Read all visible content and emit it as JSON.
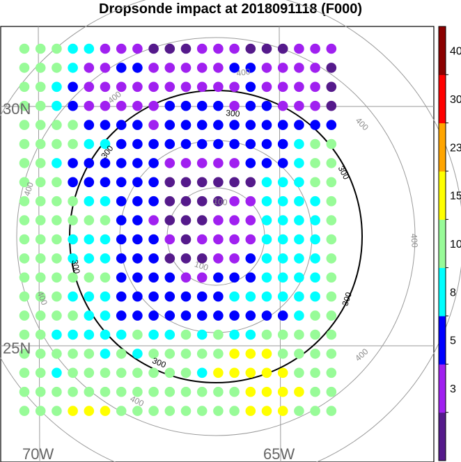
{
  "title": "Dropsonde impact at 2018091118 (F000)",
  "map": {
    "lat_labels": [
      "30N",
      "25N"
    ],
    "lon_labels": [
      "70W",
      "65W"
    ],
    "contour_labels": {
      "c100": "100",
      "c300": "300",
      "c400": "400"
    },
    "grid": "on"
  },
  "colorbar": {
    "tick_labels": [
      "3",
      "5",
      "8",
      "10",
      "15",
      "23",
      "30",
      "40"
    ],
    "colors": [
      "#551a8b",
      "#a020f0",
      "#0000ff",
      "#00ffff",
      "#98fb98",
      "#ffff00",
      "#ffa500",
      "#ff0000",
      "#8b0000"
    ]
  },
  "chart_data": {
    "type": "scatter",
    "title": "Dropsonde impact at 2018091118 (F000)",
    "description_levels": [
      "<3",
      "3-5",
      "5-8",
      "8-10",
      "10-15",
      "15-23",
      "23-30",
      "30-40",
      ">40"
    ],
    "grid_rows": [
      "44433111000111000111",
      "44431122111112211110",
      "44321111111111211110",
      "44321111122221221110",
      "44442222122222222222",
      "44443322222222222344",
      "44322222211111222344",
      "44422222200000033344",
      "44443322200001133334",
      "44444422100011133334",
      "44433322210111133334",
      "44433322200011233334",
      "44444422221122233334",
      "44433322222223333334",
      "44443322222222222344",
      "44333334334343344444",
      "44444343444445554444",
      "44344444444355555444",
      "44444444444444555544",
      "44455544444444555444"
    ]
  }
}
